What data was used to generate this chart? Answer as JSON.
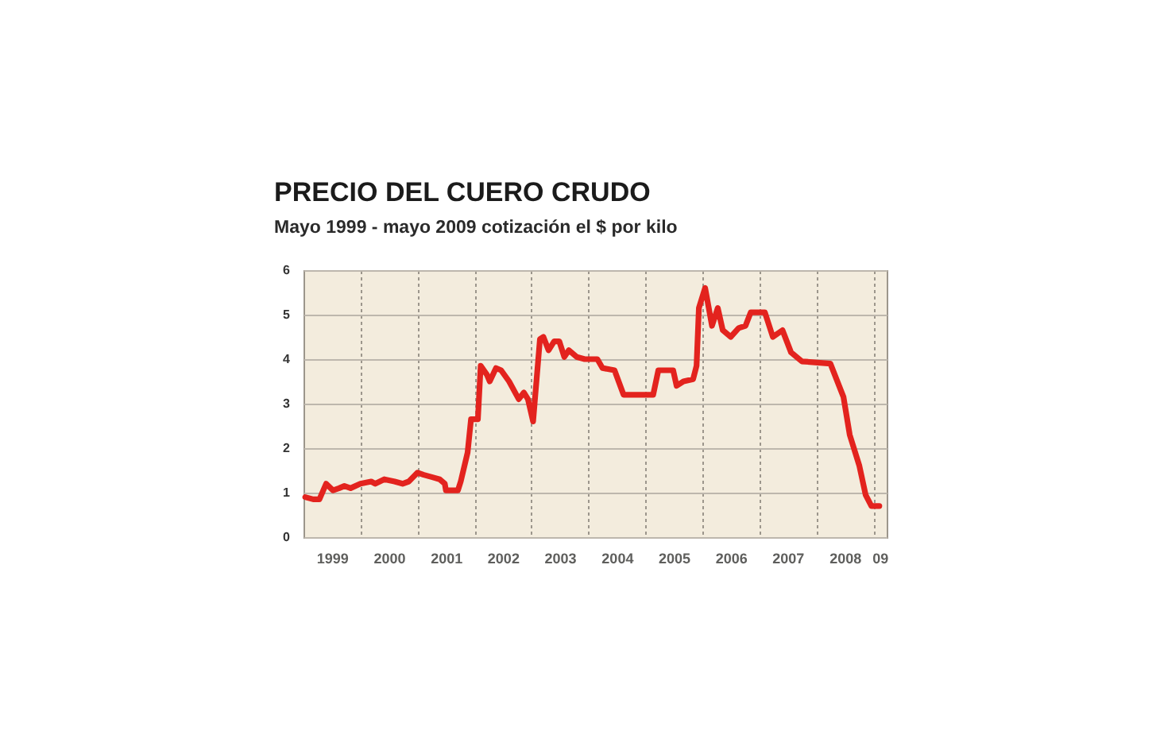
{
  "chart_data": {
    "type": "line",
    "title": "PRECIO DEL CUERO CRUDO",
    "subtitle": "Mayo 1999 - mayo 2009 cotización el $ por kilo",
    "x": [
      "1999-01-12",
      "1999-03-04",
      "1999-04-13",
      "1999-05-26",
      "1999-07-09",
      "1999-08-18",
      "1999-09-20",
      "1999-10-30",
      "2000-01-01",
      "2000-03-10",
      "2000-04-05",
      "2000-06-02",
      "2000-08-07",
      "2000-09-27",
      "2000-11-06",
      "2001-01-01",
      "2001-02-10",
      "2001-04-02",
      "2001-05-23",
      "2001-06-25",
      "2001-07-02",
      "2001-09-17",
      "2001-10-05",
      "2001-11-18",
      "2001-12-10",
      "2002-01-23",
      "2002-02-10",
      "2002-03-22",
      "2002-04-09",
      "2002-05-19",
      "2002-06-21",
      "2002-08-11",
      "2002-10-12",
      "2002-11-14",
      "2002-12-10",
      "2003-01-12",
      "2003-02-25",
      "2003-03-19",
      "2003-04-21",
      "2003-05-27",
      "2003-06-29",
      "2003-07-31",
      "2003-08-29",
      "2003-10-19",
      "2003-12-09",
      "2004-02-28",
      "2004-04-01",
      "2004-06-17",
      "2004-08-14",
      "2005-02-20",
      "2005-03-25",
      "2005-06-28",
      "2005-07-20",
      "2005-09-02",
      "2005-11-03",
      "2005-11-25",
      "2005-12-10",
      "2006-01-19",
      "2006-03-04",
      "2006-04-10",
      "2006-05-12",
      "2006-07-02",
      "2006-08-22",
      "2006-10-05",
      "2006-11-07",
      "2007-02-06",
      "2007-03-29",
      "2007-05-30",
      "2007-07-24",
      "2007-10-01",
      "2008-04-01",
      "2008-06-24",
      "2008-08-03",
      "2008-10-04",
      "2008-11-13",
      "2008-12-20",
      "2009-02-09"
    ],
    "series": [
      {
        "color": "#e3231e",
        "values": [
          0.9,
          0.85,
          0.85,
          1.2,
          1.05,
          1.1,
          1.15,
          1.1,
          1.2,
          1.25,
          1.2,
          1.3,
          1.25,
          1.2,
          1.25,
          1.45,
          1.4,
          1.35,
          1.3,
          1.2,
          1.05,
          1.05,
          1.25,
          1.9,
          2.65,
          2.65,
          3.85,
          3.65,
          3.5,
          3.8,
          3.75,
          3.5,
          3.1,
          3.25,
          3.1,
          2.6,
          4.45,
          4.5,
          4.2,
          4.4,
          4.4,
          4.05,
          4.2,
          4.05,
          4.0,
          4.0,
          3.8,
          3.75,
          3.2,
          3.2,
          3.75,
          3.75,
          3.4,
          3.5,
          3.55,
          3.85,
          5.15,
          5.6,
          4.75,
          5.15,
          4.65,
          4.5,
          4.7,
          4.75,
          5.05,
          5.05,
          4.5,
          4.65,
          4.15,
          3.95,
          3.9,
          3.15,
          2.3,
          1.6,
          0.95,
          0.7,
          0.7
        ]
      }
    ],
    "xlim": [
      "1999-01-01",
      "2009-03-28"
    ],
    "xticks": [
      {
        "value": "1999-07-02",
        "label": "1999"
      },
      {
        "value": "2000-01-01",
        "label": null
      },
      {
        "value": "2000-07-02",
        "label": "2000"
      },
      {
        "value": "2001-01-01",
        "label": null
      },
      {
        "value": "2001-07-02",
        "label": "2001"
      },
      {
        "value": "2002-01-01",
        "label": null
      },
      {
        "value": "2002-07-02",
        "label": "2002"
      },
      {
        "value": "2003-01-01",
        "label": null
      },
      {
        "value": "2003-07-02",
        "label": "2003"
      },
      {
        "value": "2004-01-01",
        "label": null
      },
      {
        "value": "2004-07-02",
        "label": "2004"
      },
      {
        "value": "2005-01-01",
        "label": null
      },
      {
        "value": "2005-07-02",
        "label": "2005"
      },
      {
        "value": "2006-01-01",
        "label": null
      },
      {
        "value": "2006-07-02",
        "label": "2006"
      },
      {
        "value": "2007-01-01",
        "label": null
      },
      {
        "value": "2007-07-02",
        "label": "2007"
      },
      {
        "value": "2008-01-01",
        "label": null
      },
      {
        "value": "2008-07-02",
        "label": "2008"
      },
      {
        "value": "2009-01-01",
        "label": null
      },
      {
        "value": "2009-02-12",
        "label": "09"
      }
    ],
    "ylim": [
      0,
      6
    ],
    "yticks": [
      0,
      1,
      2,
      3,
      4,
      5,
      6
    ],
    "grid": true,
    "line_style": "solid"
  }
}
